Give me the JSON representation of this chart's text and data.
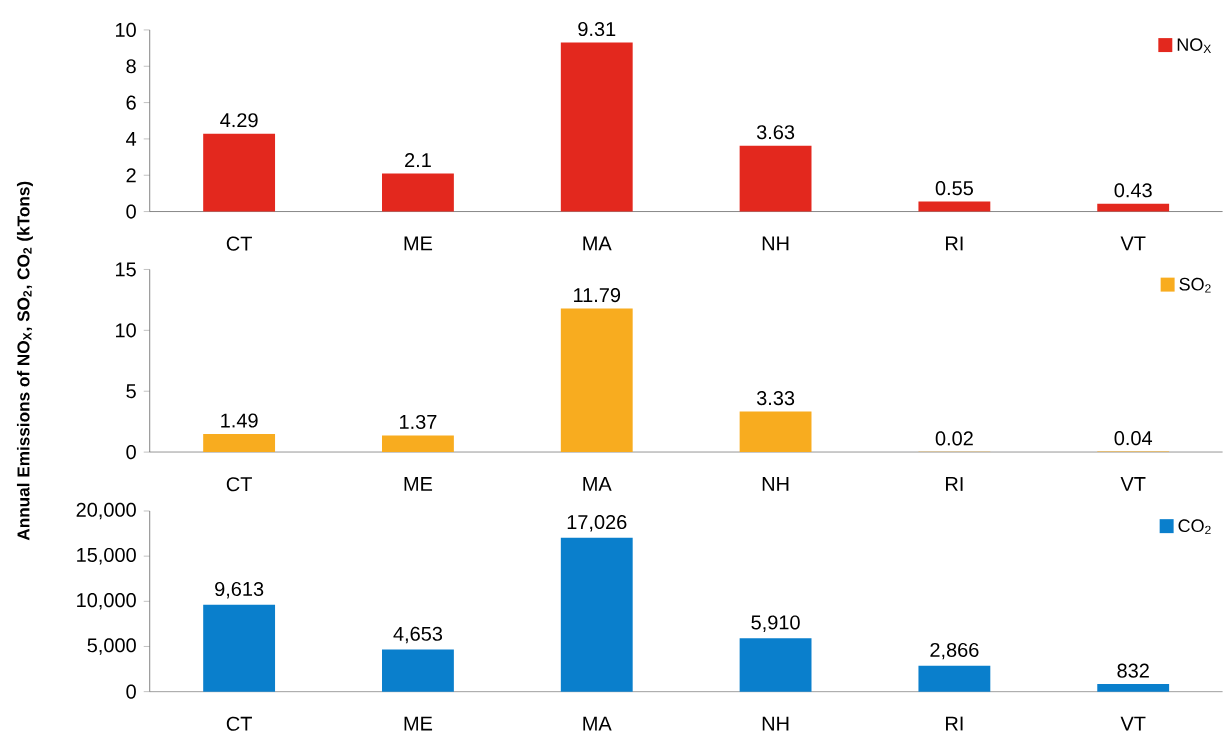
{
  "chart_data": [
    {
      "type": "bar",
      "categories": [
        "CT",
        "ME",
        "MA",
        "NH",
        "RI",
        "VT"
      ],
      "series": [
        {
          "name": "NO$_{X}$",
          "color": "#e3281e",
          "values": [
            4.29,
            2.1,
            9.31,
            3.63,
            0.55,
            0.43
          ],
          "value_labels": [
            "4.29",
            "2.1",
            "9.31",
            "3.63",
            "0.55",
            "0.43"
          ]
        }
      ],
      "ylim": [
        0,
        10
      ],
      "yticks": [
        0,
        2,
        4,
        6,
        8,
        10
      ],
      "legend": "top right"
    },
    {
      "type": "bar",
      "categories": [
        "CT",
        "ME",
        "MA",
        "NH",
        "RI",
        "VT"
      ],
      "ylabel": "Annual Emissions of NO$_{X}$, SO$_{2}$, CO$_{2}$ (kTons)",
      "series": [
        {
          "name": "SO$_{2}$",
          "color": "#f8ac1f",
          "values": [
            1.49,
            1.37,
            11.79,
            3.33,
            0.02,
            0.04
          ],
          "value_labels": [
            "1.49",
            "1.37",
            "11.79",
            "3.33",
            "0.02",
            "0.04"
          ]
        }
      ],
      "ylim": [
        0,
        15
      ],
      "yticks": [
        0,
        5,
        10,
        15
      ],
      "legend": "top right"
    },
    {
      "type": "bar",
      "categories": [
        "CT",
        "ME",
        "MA",
        "NH",
        "RI",
        "VT"
      ],
      "series": [
        {
          "name": "CO$_{2}$",
          "color": "#0a7fcc",
          "values": [
            9613,
            4653,
            17026,
            5910,
            2866,
            832
          ],
          "value_labels": [
            "9,613",
            "4,653",
            "17,026",
            "5,910",
            "2,866",
            "832"
          ]
        }
      ],
      "ylim": [
        0,
        20000
      ],
      "yticks": [
        0,
        {
          "value": 5000,
          "label": "5,000"
        },
        {
          "value": 10000,
          "label": "10,000"
        },
        {
          "value": 15000,
          "label": "15,000"
        },
        {
          "value": 20000,
          "label": "20,000"
        }
      ],
      "legend": "top right"
    }
  ]
}
